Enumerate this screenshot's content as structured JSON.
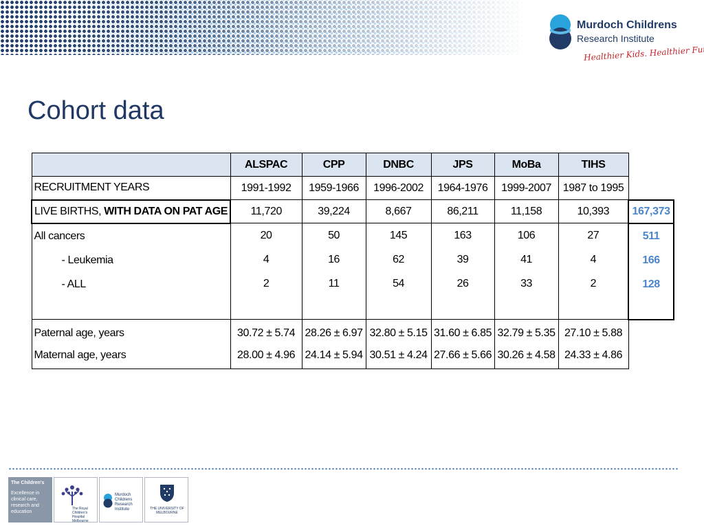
{
  "header": {
    "logo": {
      "name": "Murdoch Childrens",
      "subtitle": "Research Institute",
      "tagline": "Healthier Kids. Healthier Future."
    }
  },
  "page_title": "Cohort data",
  "table": {
    "columns": [
      "ALSPAC",
      "CPP",
      "DNBC",
      "JPS",
      "MoBa",
      "TIHS"
    ],
    "recruitment": {
      "label": "RECRUITMENT YEARS",
      "values": [
        "1991-1992",
        "1959-1966",
        "1996-2002",
        "1964-1976",
        "1999-2007",
        "1987 to 1995"
      ]
    },
    "live_births": {
      "label_plain": "LIVE BIRTHS, ",
      "label_bold": "WITH DATA ON PAT AGE",
      "values": [
        "11,720",
        "39,224",
        "8,667",
        "86,211",
        "11,158",
        "10,393"
      ],
      "total": "167,373"
    },
    "cancers": [
      {
        "label": "All cancers",
        "values": [
          "20",
          "50",
          "145",
          "163",
          "106",
          "27"
        ],
        "total": "511"
      },
      {
        "label": "- Leukemia",
        "values": [
          "4",
          "16",
          "62",
          "39",
          "41",
          "4"
        ],
        "total": "166"
      },
      {
        "label": "- ALL",
        "values": [
          "2",
          "11",
          "54",
          "26",
          "33",
          "2"
        ],
        "total": "128"
      }
    ],
    "paternal_age": {
      "label": "Paternal age, years",
      "values": [
        "30.72 ± 5.74",
        "28.26 ± 6.97",
        "32.80 ± 5.15",
        "31.60 ± 6.85",
        "32.79 ± 5.35",
        "27.10 ± 5.88"
      ]
    },
    "maternal_age": {
      "label": "Maternal age, years",
      "values": [
        "28.00 ± 4.96",
        "24.14 ± 5.94",
        "30.51 ± 4.24",
        "27.66 ± 5.66",
        "30.26 ± 4.58",
        "24.33 ± 4.86"
      ]
    }
  },
  "footer": {
    "childrens": {
      "title": "The Children's",
      "text": "Excellence in clinical care, research and education"
    },
    "logos": [
      {
        "icon": "rch-tree-icon",
        "text": "The Royal Children's Hospital Melbourne"
      },
      {
        "icon": "mcri-icon",
        "text": "Murdoch Childrens Research Institute"
      },
      {
        "icon": "unimelb-crest-icon",
        "text": "THE UNIVERSITY OF MELBOURNE"
      }
    ]
  },
  "colors": {
    "title": "#1f3864",
    "header_fill": "#dbe5f1",
    "total": "#4a86c8",
    "tagline": "#c1272d"
  }
}
